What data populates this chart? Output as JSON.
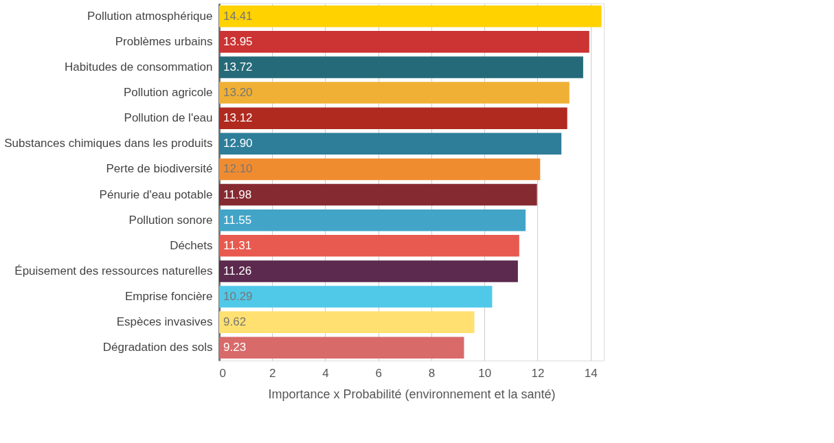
{
  "chart_data": {
    "type": "bar",
    "orientation": "horizontal",
    "xlabel": "Importance x Probabilité (environnement et la santé)",
    "categories": [
      "Pollution atmosphérique",
      "Problèmes urbains",
      "Habitudes de consommation",
      "Pollution agricole",
      "Pollution de l'eau",
      "Substances chimiques dans les produits",
      "Perte de biodiversité",
      "Pénurie d'eau potable",
      "Pollution sonore",
      "Déchets",
      "Épuisement des ressources naturelles",
      "Emprise foncière",
      "Espèces invasives",
      "Dégradation des sols"
    ],
    "values": [
      14.41,
      13.95,
      13.72,
      13.2,
      13.12,
      12.9,
      12.1,
      11.98,
      11.55,
      11.31,
      11.26,
      10.29,
      9.62,
      9.23
    ],
    "value_labels": [
      "14.41",
      "13.95",
      "13.72",
      "13.20",
      "13.12",
      "12.90",
      "12.10",
      "11.98",
      "11.55",
      "11.31",
      "11.26",
      "10.29",
      "9.62",
      "9.23"
    ],
    "colors": [
      "#ffd200",
      "#cc3333",
      "#256a78",
      "#f0b035",
      "#b02a20",
      "#2e7e9a",
      "#f08c30",
      "#862a32",
      "#42a5c8",
      "#e85a4f",
      "#5c2a4e",
      "#50c8e8",
      "#ffe070",
      "#d96a6a"
    ],
    "xlim": [
      0,
      14.5
    ],
    "xticks": [
      0,
      2,
      4,
      6,
      8,
      10,
      12,
      14
    ],
    "grid": "x"
  }
}
